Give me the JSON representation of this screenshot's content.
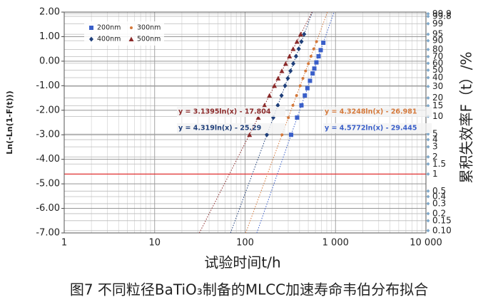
{
  "chart_data": {
    "type": "scatter",
    "caption": "图7 不同粒径BaTiO₃制备的MLCC加速寿命韦伯分布拟合",
    "xlabel": "试验时间t/h",
    "ylabel": "Ln(-Ln(1-F(t)))",
    "y2label": "累积失效率F（t）/%",
    "xscale": "log",
    "xlim": [
      1,
      10000
    ],
    "xticks": [
      1,
      10,
      100,
      {
        "value": 1000,
        "label": "1 000"
      },
      {
        "value": 10000,
        "label": "10 000"
      }
    ],
    "ylim": [
      -7,
      2
    ],
    "yticks": [
      {
        "value": 2,
        "label": "2.00"
      },
      {
        "value": 1,
        "label": "1.00"
      },
      {
        "value": 0,
        "label": "0.00"
      },
      {
        "value": -1,
        "label": "-1.00"
      },
      {
        "value": -2,
        "label": "-2.00"
      },
      {
        "value": -3,
        "label": "-3.00"
      },
      {
        "value": -4,
        "label": "-4.00"
      },
      {
        "value": -5,
        "label": "-5.00"
      },
      {
        "value": -6,
        "label": "-6.00"
      },
      {
        "value": -7,
        "label": "-7.00"
      }
    ],
    "y2scale": "weibull",
    "y2ticks": [
      99.9,
      99.8,
      99,
      95,
      90,
      80,
      70,
      60,
      50,
      40,
      30,
      20,
      15,
      10,
      5,
      4,
      3,
      2,
      1.5,
      1,
      0.5,
      0.4,
      0.3,
      0.2,
      0.15,
      {
        "value": 0.1,
        "label": "0.10"
      }
    ],
    "reference_line_y2": 1,
    "reference_color": "#e03030",
    "grid": true,
    "legend": "upper left",
    "series": [
      {
        "name": "200nm",
        "color": "#3a5fc9",
        "marker": "square",
        "x": [
          323,
          376,
          420,
          458,
          489,
          522,
          558,
          583,
          615,
          650,
          686,
          733
        ],
        "values": [
          -3.0,
          -2.3,
          -1.8,
          -1.4,
          -1.1,
          -0.8,
          -0.5,
          -0.3,
          -0.05,
          0.2,
          0.45,
          0.75
        ],
        "fit": {
          "slope": 4.5772,
          "intercept": -29.445
        },
        "fit_label": "y = 4.5772ln(x) - 29.445"
      },
      {
        "name": "300nm",
        "color": "#d4783a",
        "marker": "dot",
        "x": [
          256,
          301,
          338,
          371,
          407,
          436,
          467,
          501,
          536,
          575,
          617
        ],
        "values": [
          -3.0,
          -2.3,
          -1.8,
          -1.4,
          -1.0,
          -0.7,
          -0.4,
          -0.1,
          0.2,
          0.5,
          0.8
        ],
        "fit": {
          "slope": 4.3248,
          "intercept": -26.981
        },
        "fit_label": "y = 4.3248ln(x) - 26.981"
      },
      {
        "name": "400nm",
        "color": "#1f3f7a",
        "marker": "diamond",
        "x": [
          174,
          205,
          230,
          253,
          277,
          297,
          318,
          341,
          366,
          392,
          420,
          450
        ],
        "values": [
          -3.0,
          -2.3,
          -1.8,
          -1.4,
          -1.0,
          -0.7,
          -0.4,
          -0.1,
          0.2,
          0.5,
          0.8,
          1.1
        ],
        "fit": {
          "slope": 4.319,
          "intercept": -25.29
        },
        "fit_label": "y = 4.319ln(x) - 25.29"
      },
      {
        "name": "500nm",
        "color": "#8b2a2a",
        "marker": "triangle",
        "x": [
          112,
          140,
          164,
          186,
          211,
          232,
          255,
          281,
          310,
          340,
          375,
          412
        ],
        "values": [
          -3.0,
          -2.3,
          -1.8,
          -1.4,
          -1.0,
          -0.7,
          -0.4,
          -0.1,
          0.2,
          0.5,
          0.8,
          1.1
        ],
        "fit": {
          "slope": 3.1395,
          "intercept": -17.804
        },
        "fit_label": "y = 3.1395ln(x) - 17.804"
      }
    ]
  }
}
